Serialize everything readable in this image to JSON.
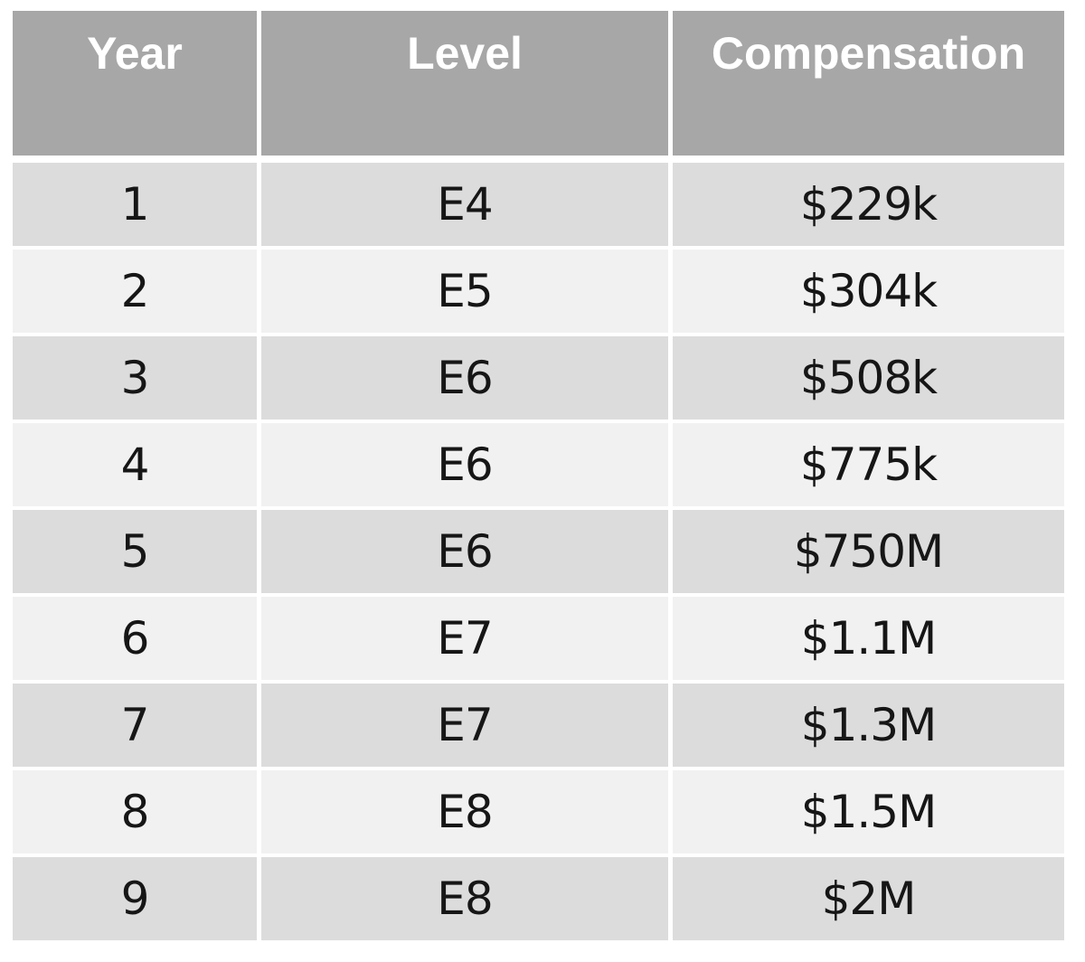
{
  "colors": {
    "page_bg": "#ffffff",
    "header_bg": "#a7a7a7",
    "header_text": "#ffffff",
    "row_odd_bg": "#dcdcdc",
    "row_even_bg": "#f1f1f1",
    "cell_text": "#161616"
  },
  "chart_data": {
    "type": "table",
    "columns": [
      "Year",
      "Level",
      "Compensation"
    ],
    "rows": [
      [
        "1",
        "E4",
        "$229k"
      ],
      [
        "2",
        "E5",
        "$304k"
      ],
      [
        "3",
        "E6",
        "$508k"
      ],
      [
        "4",
        "E6",
        "$775k"
      ],
      [
        "5",
        "E6",
        "$750M"
      ],
      [
        "6",
        "E7",
        "$1.1M"
      ],
      [
        "7",
        "E7",
        "$1.3M"
      ],
      [
        "8",
        "E8",
        "$1.5M"
      ],
      [
        "9",
        "E8",
        "$2M"
      ]
    ],
    "layout": {
      "header_position": "top",
      "banded_rows": true,
      "text_align": "center"
    }
  }
}
